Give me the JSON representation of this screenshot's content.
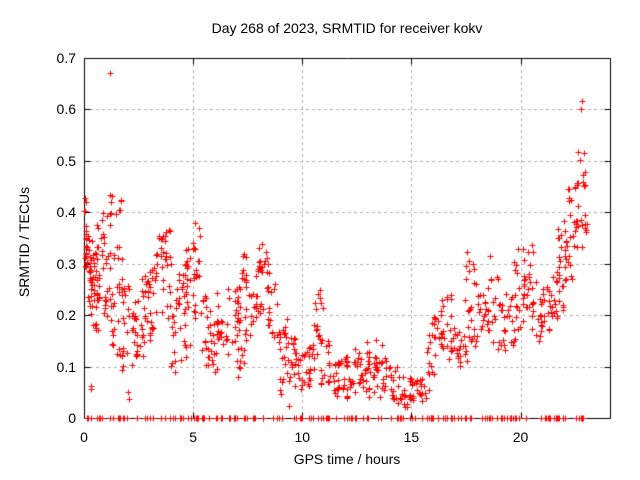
{
  "figure": {
    "title": "Day 268 of 2023, SRMTID for receiver kokv",
    "xlabel": "GPS time / hours",
    "ylabel": "SRMTID / TECUs",
    "bg_color": "#ffffff",
    "border_color": "#000000",
    "grid_color": "#b3b3b3",
    "text_color": "#000000"
  },
  "chart_data": {
    "type": "scatter",
    "title": "Day 268 of 2023, SRMTID for receiver kokv",
    "xlabel": "GPS time / hours",
    "ylabel": "SRMTID / TECUs",
    "xlim": [
      0,
      24.1
    ],
    "ylim": [
      0,
      0.7
    ],
    "xticks": [
      0,
      5,
      10,
      15,
      20
    ],
    "yticks": [
      0,
      0.1,
      0.2,
      0.3,
      0.4,
      0.5,
      0.6,
      0.7
    ],
    "xtick_labels": [
      "0",
      "5",
      "10",
      "15",
      "20"
    ],
    "ytick_labels": [
      "0",
      "0.1",
      "0.2",
      "0.3",
      "0.4",
      "0.5",
      "0.6",
      "0.7"
    ],
    "grid": true,
    "legend": false,
    "marker": "plus",
    "marker_color": "#ff0000",
    "prng_seed": 268,
    "outlier_points": [
      [
        1.18,
        0.67
      ],
      [
        22.8,
        0.617
      ],
      [
        22.78,
        0.601
      ],
      [
        0.31,
        0.057
      ],
      [
        0.34,
        0.063
      ],
      [
        2.03,
        0.05
      ],
      [
        2.06,
        0.037
      ],
      [
        9.4,
        0.023
      ],
      [
        12.95,
        0.147
      ]
    ],
    "cluster_bands": [
      [
        0.0,
        0.1,
        0.27,
        0.44,
        10
      ],
      [
        0.02,
        0.3,
        0.28,
        0.4,
        14
      ],
      [
        0.1,
        0.45,
        0.2,
        0.33,
        16
      ],
      [
        0.3,
        0.7,
        0.17,
        0.3,
        18
      ],
      [
        0.35,
        0.65,
        0.3,
        0.38,
        8
      ],
      [
        0.55,
        0.95,
        0.2,
        0.34,
        16
      ],
      [
        0.75,
        0.95,
        0.34,
        0.41,
        6
      ],
      [
        0.9,
        1.25,
        0.17,
        0.33,
        14
      ],
      [
        1.0,
        1.3,
        0.36,
        0.45,
        7
      ],
      [
        1.2,
        1.6,
        0.12,
        0.25,
        14
      ],
      [
        1.35,
        1.75,
        0.25,
        0.35,
        10
      ],
      [
        1.4,
        1.75,
        0.38,
        0.44,
        5
      ],
      [
        1.45,
        1.85,
        0.08,
        0.14,
        7
      ],
      [
        1.75,
        2.1,
        0.12,
        0.28,
        14
      ],
      [
        2.0,
        2.45,
        0.1,
        0.22,
        16
      ],
      [
        2.3,
        2.75,
        0.12,
        0.24,
        14
      ],
      [
        2.6,
        3.05,
        0.14,
        0.28,
        14
      ],
      [
        2.8,
        3.1,
        0.24,
        0.3,
        6
      ],
      [
        3.0,
        3.45,
        0.16,
        0.3,
        16
      ],
      [
        3.2,
        3.6,
        0.28,
        0.35,
        8
      ],
      [
        3.45,
        3.65,
        0.33,
        0.37,
        4
      ],
      [
        3.55,
        4.0,
        0.18,
        0.33,
        16
      ],
      [
        3.6,
        4.2,
        0.34,
        0.375,
        6
      ],
      [
        3.9,
        4.25,
        0.08,
        0.13,
        5
      ],
      [
        3.95,
        4.4,
        0.16,
        0.3,
        14
      ],
      [
        4.3,
        4.75,
        0.17,
        0.3,
        14
      ],
      [
        4.4,
        4.9,
        0.1,
        0.15,
        6
      ],
      [
        4.65,
        5.05,
        0.2,
        0.33,
        14
      ],
      [
        4.95,
        5.3,
        0.32,
        0.39,
        7
      ],
      [
        5.0,
        5.45,
        0.18,
        0.32,
        12
      ],
      [
        5.35,
        5.8,
        0.13,
        0.24,
        14
      ],
      [
        5.5,
        6.1,
        0.09,
        0.14,
        8
      ],
      [
        5.7,
        6.2,
        0.12,
        0.19,
        14
      ],
      [
        6.1,
        6.6,
        0.13,
        0.25,
        14
      ],
      [
        6.55,
        7.05,
        0.12,
        0.27,
        14
      ],
      [
        6.9,
        7.2,
        0.2,
        0.27,
        8
      ],
      [
        7.0,
        7.35,
        0.06,
        0.12,
        6
      ],
      [
        7.05,
        7.4,
        0.12,
        0.2,
        8
      ],
      [
        7.25,
        7.7,
        0.26,
        0.33,
        10
      ],
      [
        7.3,
        7.8,
        0.15,
        0.26,
        12
      ],
      [
        7.7,
        8.1,
        0.18,
        0.3,
        12
      ],
      [
        7.95,
        8.4,
        0.28,
        0.345,
        10
      ],
      [
        8.05,
        8.5,
        0.2,
        0.3,
        10
      ],
      [
        8.4,
        8.95,
        0.15,
        0.27,
        16
      ],
      [
        8.95,
        9.15,
        0.04,
        0.08,
        5
      ],
      [
        8.9,
        9.35,
        0.1,
        0.2,
        14
      ],
      [
        9.25,
        9.75,
        0.07,
        0.16,
        16
      ],
      [
        9.65,
        10.1,
        0.05,
        0.13,
        16
      ],
      [
        9.95,
        10.45,
        0.06,
        0.14,
        14
      ],
      [
        10.4,
        10.75,
        0.09,
        0.18,
        10
      ],
      [
        10.55,
        11.0,
        0.15,
        0.25,
        12
      ],
      [
        10.85,
        11.3,
        0.06,
        0.15,
        12
      ],
      [
        11.15,
        11.7,
        0.03,
        0.11,
        18
      ],
      [
        11.55,
        12.1,
        0.035,
        0.12,
        18
      ],
      [
        12.0,
        12.55,
        0.04,
        0.12,
        16
      ],
      [
        12.35,
        12.75,
        0.1,
        0.15,
        6
      ],
      [
        12.55,
        13.1,
        0.04,
        0.13,
        16
      ],
      [
        12.9,
        13.45,
        0.05,
        0.14,
        14
      ],
      [
        13.3,
        13.7,
        0.09,
        0.16,
        8
      ],
      [
        13.5,
        14.1,
        0.04,
        0.12,
        16
      ],
      [
        13.95,
        14.6,
        0.025,
        0.1,
        18
      ],
      [
        14.45,
        15.1,
        0.02,
        0.08,
        18
      ],
      [
        14.95,
        15.55,
        0.02,
        0.075,
        16
      ],
      [
        15.4,
        15.8,
        0.03,
        0.09,
        8
      ],
      [
        15.7,
        16.1,
        0.08,
        0.17,
        12
      ],
      [
        15.95,
        16.45,
        0.12,
        0.21,
        14
      ],
      [
        16.3,
        16.85,
        0.13,
        0.24,
        16
      ],
      [
        16.7,
        17.2,
        0.1,
        0.2,
        14
      ],
      [
        17.05,
        17.55,
        0.09,
        0.17,
        12
      ],
      [
        17.4,
        17.9,
        0.13,
        0.23,
        12
      ],
      [
        17.3,
        18.0,
        0.25,
        0.33,
        9
      ],
      [
        17.85,
        18.4,
        0.13,
        0.24,
        14
      ],
      [
        18.25,
        18.8,
        0.14,
        0.26,
        14
      ],
      [
        18.6,
        18.95,
        0.26,
        0.32,
        5
      ],
      [
        18.75,
        19.3,
        0.13,
        0.24,
        14
      ],
      [
        19.2,
        19.8,
        0.14,
        0.25,
        16
      ],
      [
        19.6,
        20.0,
        0.27,
        0.33,
        5
      ],
      [
        19.7,
        20.2,
        0.15,
        0.27,
        14
      ],
      [
        20.0,
        20.6,
        0.27,
        0.345,
        8
      ],
      [
        20.1,
        20.6,
        0.17,
        0.28,
        14
      ],
      [
        20.5,
        21.0,
        0.15,
        0.27,
        14
      ],
      [
        20.9,
        21.45,
        0.14,
        0.26,
        16
      ],
      [
        21.3,
        21.8,
        0.16,
        0.28,
        14
      ],
      [
        21.8,
        22.2,
        0.3,
        0.35,
        6
      ],
      [
        21.6,
        22.05,
        0.2,
        0.32,
        12
      ],
      [
        21.7,
        22.3,
        0.3,
        0.4,
        10
      ],
      [
        22.0,
        22.5,
        0.25,
        0.37,
        10
      ],
      [
        22.1,
        22.6,
        0.37,
        0.46,
        10
      ],
      [
        22.4,
        22.95,
        0.33,
        0.42,
        10
      ],
      [
        22.5,
        23.0,
        0.44,
        0.52,
        12
      ],
      [
        22.85,
        23.05,
        0.36,
        0.45,
        6
      ]
    ],
    "zero_row": {
      "y": 0,
      "x_min": 0.02,
      "x_max": 23.0,
      "count": 175
    }
  }
}
